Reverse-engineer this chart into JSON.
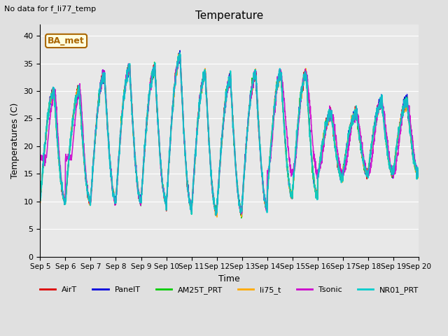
{
  "title": "Temperature",
  "subtitle": "No data for f_li77_temp",
  "xlabel": "Time",
  "ylabel": "Temperatures (C)",
  "ylim": [
    0,
    42
  ],
  "yticks": [
    0,
    5,
    10,
    15,
    20,
    25,
    30,
    35,
    40
  ],
  "x_labels": [
    "Sep 5",
    "Sep 6",
    "Sep 7",
    "Sep 8",
    "Sep 9",
    "Sep 10",
    "Sep 11",
    "Sep 12",
    "Sep 13",
    "Sep 14",
    "Sep 15",
    "Sep 16",
    "Sep 17",
    "Sep 18",
    "Sep 19",
    "Sep 20"
  ],
  "bg_color": "#e0e0e0",
  "plot_bg_color": "#e8e8e8",
  "series_order": [
    "AirT",
    "PanelT",
    "AM25T_PRT",
    "li75_t",
    "Tsonic",
    "NR01_PRT"
  ],
  "series": {
    "AirT": {
      "color": "#dd0000",
      "lw": 1.0
    },
    "PanelT": {
      "color": "#0000dd",
      "lw": 1.0
    },
    "AM25T_PRT": {
      "color": "#00cc00",
      "lw": 1.0
    },
    "li75_t": {
      "color": "#ffaa00",
      "lw": 1.0
    },
    "Tsonic": {
      "color": "#cc00cc",
      "lw": 1.2
    },
    "NR01_PRT": {
      "color": "#00cccc",
      "lw": 1.5
    }
  },
  "annotation_text": "BA_met",
  "annotation_color": "#aa6600",
  "annotation_edge": "#aa6600"
}
